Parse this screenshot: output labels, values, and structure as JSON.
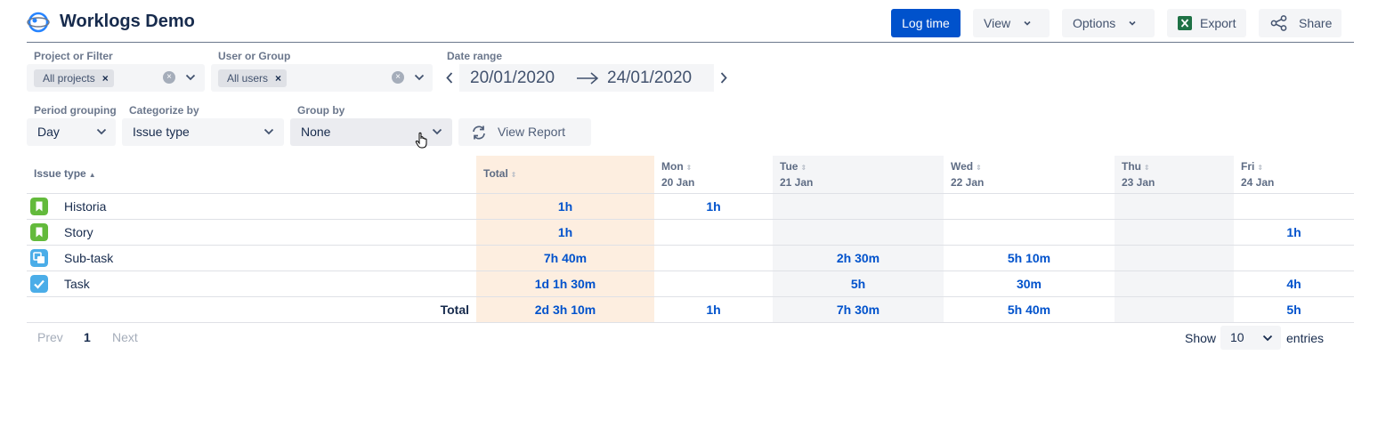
{
  "app": {
    "title": "Worklogs Demo"
  },
  "header": {
    "log_time": "Log time",
    "view": "View",
    "options": "Options",
    "export": "Export",
    "share": "Share"
  },
  "filters": {
    "project_label": "Project or Filter",
    "project_tag": "All projects",
    "user_label": "User or Group",
    "user_tag": "All users",
    "date_label": "Date range",
    "date_from": "20/01/2020",
    "date_to": "24/01/2020",
    "period_label": "Period grouping",
    "period_value": "Day",
    "categorize_label": "Categorize by",
    "categorize_value": "Issue type",
    "group_label": "Group by",
    "group_value": "None",
    "view_report": "View Report"
  },
  "table": {
    "first_header": "Issue type",
    "total_header": "Total",
    "columns": [
      {
        "day": "Mon",
        "date": "20 Jan"
      },
      {
        "day": "Tue",
        "date": "21 Jan"
      },
      {
        "day": "Wed",
        "date": "22 Jan"
      },
      {
        "day": "Thu",
        "date": "23 Jan"
      },
      {
        "day": "Fri",
        "date": "24 Jan"
      }
    ],
    "rows": [
      {
        "label": "Historia",
        "icon": "story-icon",
        "total": "1h",
        "cells": [
          "1h",
          "",
          "",
          "",
          ""
        ]
      },
      {
        "label": "Story",
        "icon": "story-icon",
        "total": "1h",
        "cells": [
          "",
          "",
          "",
          "",
          "1h"
        ]
      },
      {
        "label": "Sub-task",
        "icon": "subtask-icon",
        "total": "7h 40m",
        "cells": [
          "",
          "2h 30m",
          "5h 10m",
          "",
          ""
        ]
      },
      {
        "label": "Task",
        "icon": "task-icon",
        "total": "1d 1h 30m",
        "cells": [
          "",
          "5h",
          "30m",
          "",
          "4h"
        ]
      }
    ],
    "footer": {
      "label": "Total",
      "total": "2d 3h 10m",
      "cells": [
        "1h",
        "7h 30m",
        "5h 40m",
        "",
        "5h"
      ]
    }
  },
  "pagination": {
    "prev": "Prev",
    "page": "1",
    "next": "Next",
    "show": "Show",
    "entries_value": "10",
    "entries": "entries"
  },
  "colors": {
    "primary": "#0052cc",
    "total_column": "#fdeee0",
    "weekday_shade": "#f4f5f7",
    "story_green": "#63ba3c",
    "subtask_blue": "#4bade8",
    "task_blue": "#4bade8"
  }
}
